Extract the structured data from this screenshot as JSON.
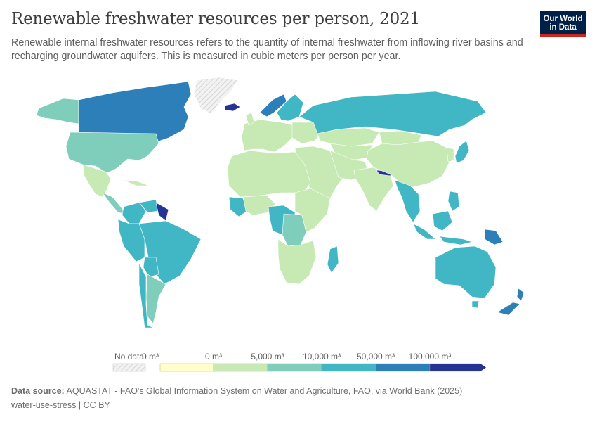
{
  "header": {
    "title": "Renewable freshwater resources per person, 2021",
    "subtitle": "Renewable internal freshwater resources refers to the quantity of internal freshwater from inflowing river basins and recharging groundwater aquifers. This is measured in cubic meters per person per year.",
    "logo_line1": "Our World",
    "logo_line2": "in Data"
  },
  "legend": {
    "no_data_label": "No data",
    "ticks": [
      "0 m³",
      "0 m³",
      "5,000 m³",
      "10,000 m³",
      "50,000 m³",
      "100,000 m³"
    ],
    "colors": [
      "#ffffcc",
      "#c7e9b4",
      "#7fcdbb",
      "#41b6c4",
      "#2c7fb8",
      "#253494"
    ],
    "no_data_color": "#e8e8e8"
  },
  "footer": {
    "source_label": "Data source:",
    "source_text": "AQUASTAT - FAO's Global Information System on Water and Agriculture, FAO, via World Bank (2025)",
    "credit": "water-use-stress | CC BY"
  }
}
